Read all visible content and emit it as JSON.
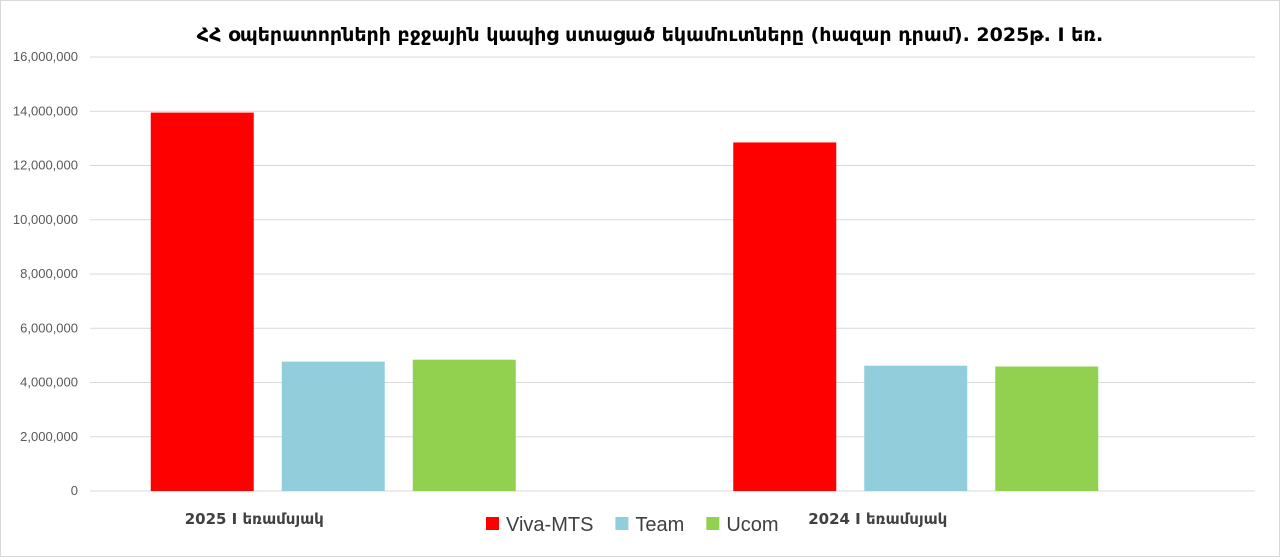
{
  "chart_data": {
    "type": "bar",
    "title": "ՀՀ օպերատորների բջջային կապից ստացած եկամուտները (հազար դրամ). 2025թ. I եռ.",
    "categories": [
      "2025 I եռամսյակ",
      "2024 I եռամսյակ"
    ],
    "series": [
      {
        "name": "Viva-MTS",
        "color": "#ff0000",
        "values": [
          13950000,
          12850000
        ]
      },
      {
        "name": "Team",
        "color": "#92cddc",
        "values": [
          4770000,
          4620000
        ]
      },
      {
        "name": "Ucom",
        "color": "#92d050",
        "values": [
          4840000,
          4590000
        ]
      }
    ],
    "ylim": [
      0,
      16000000
    ],
    "yticks": [
      "0",
      "2,000,000",
      "4,000,000",
      "6,000,000",
      "8,000,000",
      "10,000,000",
      "12,000,000",
      "14,000,000",
      "16,000,000"
    ],
    "grid": true,
    "legend": "bottom"
  }
}
